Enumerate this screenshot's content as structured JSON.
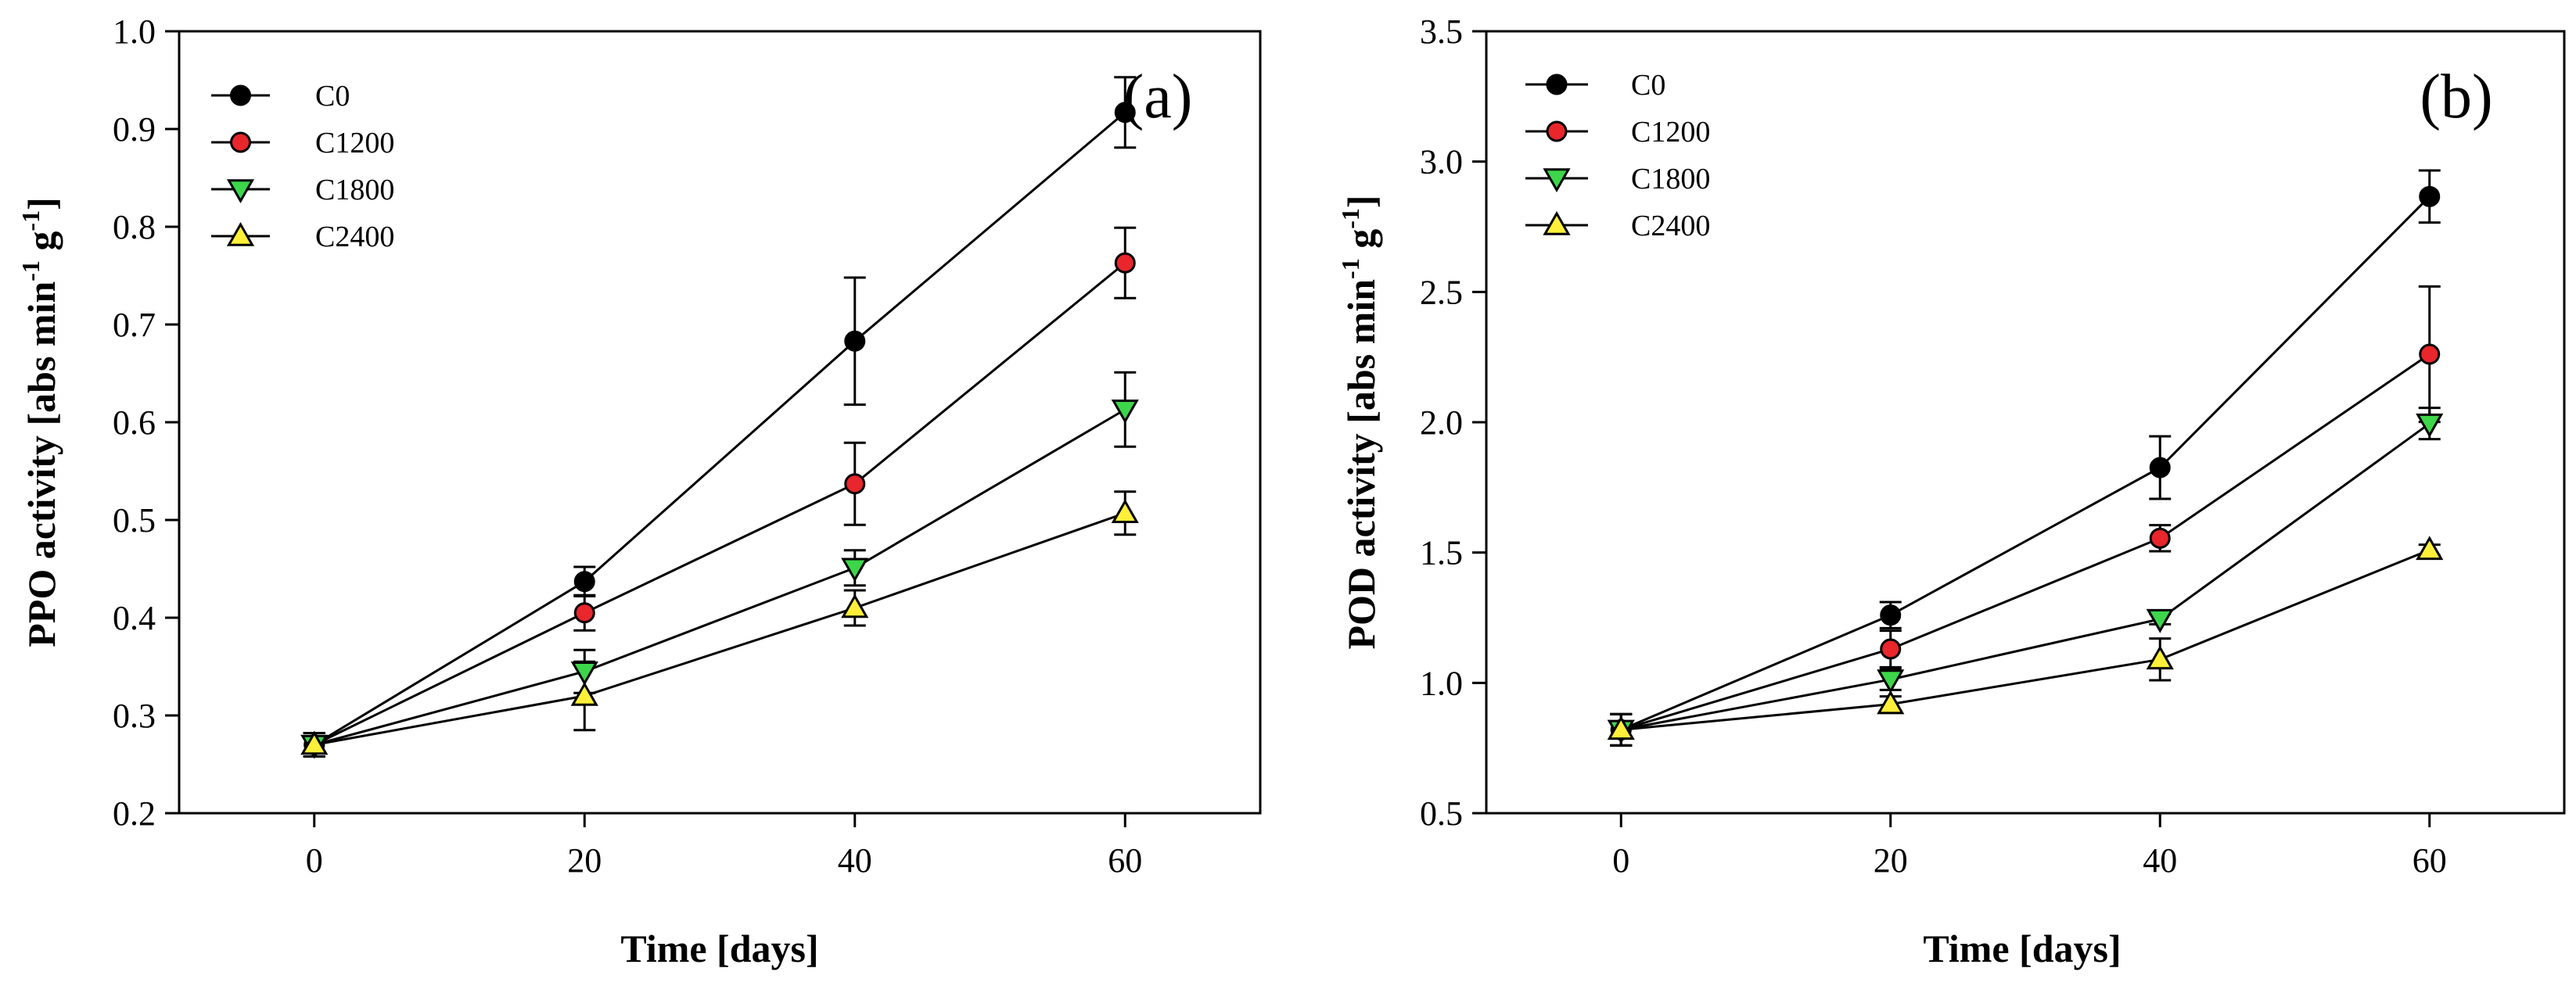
{
  "chart_data": [
    {
      "type": "line",
      "panel_label": "(a)",
      "title": "",
      "xlabel": "Time [days]",
      "ylabel": {
        "main": "PPO activity [abs min",
        "sup1": "-1",
        "mid": " g",
        "sup2": "-1",
        "end": "]"
      },
      "x": [
        0,
        20,
        40,
        60
      ],
      "xticks": [
        "0",
        "20",
        "40",
        "60"
      ],
      "xlim": [
        -10,
        70
      ],
      "ylim": [
        0.2,
        1.0
      ],
      "yticks": [
        "0.2",
        "0.3",
        "0.4",
        "0.5",
        "0.6",
        "0.7",
        "0.8",
        "0.9",
        "1.0"
      ],
      "legend_position": "top-left",
      "series": [
        {
          "name": "C0",
          "marker": "circle",
          "color": "#000000",
          "values": [
            0.27,
            0.437,
            0.683,
            0.917
          ],
          "errors": [
            0.012,
            0.015,
            0.065,
            0.036
          ]
        },
        {
          "name": "C1200",
          "marker": "circle",
          "color": "#e8262b",
          "values": [
            0.27,
            0.405,
            0.537,
            0.763
          ],
          "errors": [
            0.012,
            0.018,
            0.042,
            0.036
          ]
        },
        {
          "name": "C1800",
          "marker": "triangle-down",
          "color": "#3dd64a",
          "values": [
            0.27,
            0.345,
            0.451,
            0.613
          ],
          "errors": [
            0.012,
            0.022,
            0.018,
            0.038
          ]
        },
        {
          "name": "C2400",
          "marker": "triangle-up",
          "color": "#ffef3a",
          "values": [
            0.27,
            0.32,
            0.41,
            0.507
          ],
          "errors": [
            0.012,
            0.035,
            0.018,
            0.022
          ]
        }
      ]
    },
    {
      "type": "line",
      "panel_label": "(b)",
      "title": "",
      "xlabel": "Time [days]",
      "ylabel": {
        "main": "POD activity [abs min",
        "sup1": "-1",
        "mid": " g",
        "sup2": "-1",
        "end": "]"
      },
      "x": [
        0,
        20,
        40,
        60
      ],
      "xticks": [
        "0",
        "20",
        "40",
        "60"
      ],
      "xlim": [
        -10,
        70
      ],
      "ylim": [
        0.5,
        3.5
      ],
      "yticks": [
        "0.5",
        "1.0",
        "1.5",
        "2.0",
        "2.5",
        "3.0",
        "3.5"
      ],
      "legend_position": "top-left",
      "series": [
        {
          "name": "C0",
          "marker": "circle",
          "color": "#000000",
          "values": [
            0.82,
            1.26,
            1.826,
            2.866
          ],
          "errors": [
            0.06,
            0.05,
            0.12,
            0.1
          ]
        },
        {
          "name": "C1200",
          "marker": "circle",
          "color": "#e8262b",
          "values": [
            0.82,
            1.13,
            1.555,
            2.261
          ],
          "errors": [
            0.06,
            0.07,
            0.05,
            0.26
          ]
        },
        {
          "name": "C1800",
          "marker": "triangle-down",
          "color": "#3dd64a",
          "values": [
            0.82,
            1.013,
            1.245,
            1.995
          ],
          "errors": [
            0.06,
            0.04,
            0.02,
            0.06
          ]
        },
        {
          "name": "C2400",
          "marker": "triangle-up",
          "color": "#ffef3a",
          "values": [
            0.82,
            0.918,
            1.09,
            1.51
          ],
          "errors": [
            0.06,
            0.03,
            0.08,
            0.02
          ]
        }
      ]
    }
  ]
}
